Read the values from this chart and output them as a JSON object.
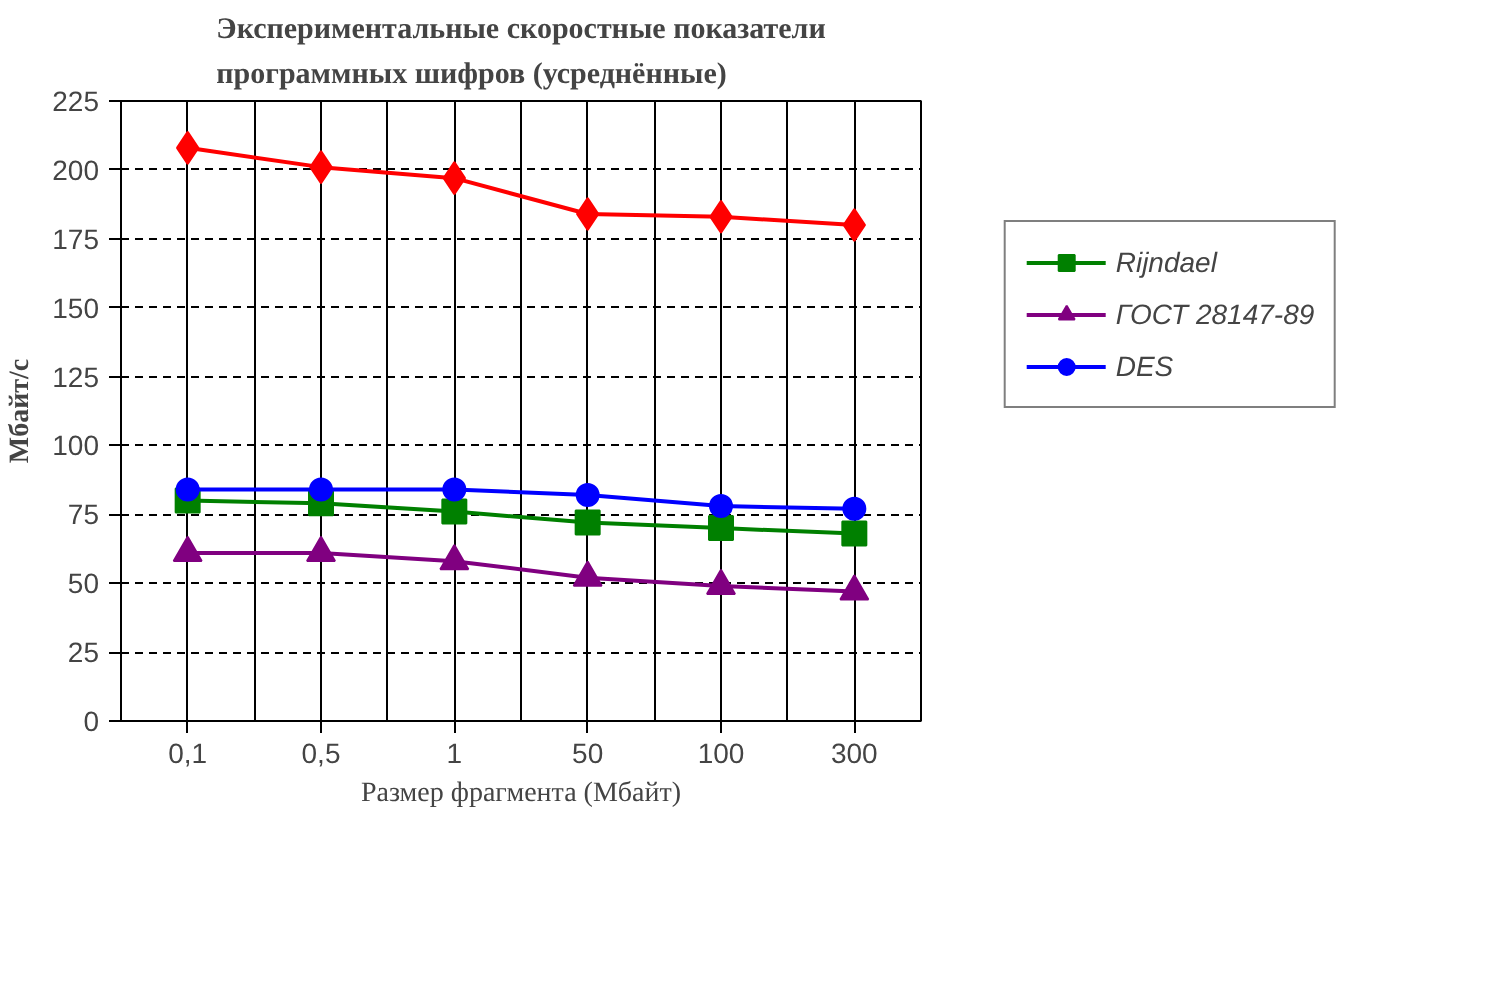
{
  "chart_data": {
    "type": "line",
    "title": "Экспериментальные скоростные показатели\nпрограммных шифров (усреднённые)",
    "xlabel": "Размер фрагмента (Мбайт)",
    "ylabel": "Мбайт/с",
    "categories": [
      "0,1",
      "0,5",
      "1",
      "50",
      "100",
      "300"
    ],
    "series": [
      {
        "color": "#ff0000",
        "marker": "diamond",
        "values": [
          208,
          201,
          197,
          184,
          183,
          180
        ]
      },
      {
        "name": "Rijndael",
        "color": "#008000",
        "marker": "square",
        "values": [
          80,
          79,
          76,
          72,
          70,
          68
        ]
      },
      {
        "name": "ГОСТ 28147-89",
        "color": "#800080",
        "marker": "triangle",
        "values": [
          61,
          61,
          58,
          52,
          49,
          47
        ]
      },
      {
        "name": "DES",
        "color": "#0000ff",
        "marker": "circle",
        "values": [
          84,
          84,
          84,
          82,
          78,
          77
        ]
      }
    ],
    "ylim": [
      0,
      225
    ],
    "yticks": [
      0,
      25,
      50,
      75,
      100,
      125,
      150,
      175,
      200,
      225
    ],
    "grid": true,
    "legend": "right",
    "line_style": "solid"
  }
}
